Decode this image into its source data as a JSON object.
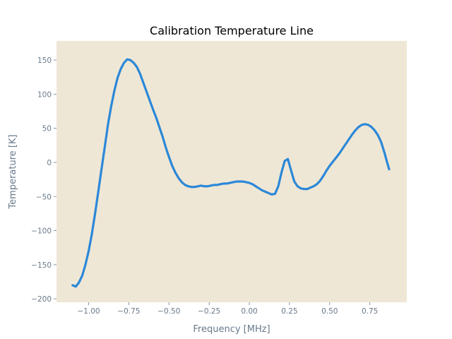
{
  "chart_data": {
    "type": "line",
    "title": "Calibration Temperature Line",
    "xlabel": "Frequency [MHz]",
    "ylabel": "Temperature [K]",
    "xlim": [
      -1.2,
      0.98
    ],
    "ylim": [
      -205,
      178
    ],
    "xticks": [
      -1.0,
      -0.75,
      -0.5,
      -0.25,
      0.0,
      0.25,
      0.5,
      0.75
    ],
    "xtick_labels": [
      "−1.00",
      "−0.75",
      "−0.50",
      "−0.25",
      "0.00",
      "0.25",
      "0.50",
      "0.75"
    ],
    "yticks": [
      -200,
      -150,
      -100,
      -50,
      0,
      50,
      100,
      150
    ],
    "ytick_labels": [
      "−200",
      "−150",
      "−100",
      "−50",
      "0",
      "50",
      "100",
      "150"
    ],
    "grid": false,
    "legend": "none",
    "colors": {
      "plot_background": "#efe7d5",
      "line": "#2b88d8"
    },
    "series": [
      {
        "x": [
          -1.1,
          -1.08,
          -1.06,
          -1.04,
          -1.02,
          -1.0,
          -0.98,
          -0.96,
          -0.94,
          -0.92,
          -0.9,
          -0.88,
          -0.86,
          -0.84,
          -0.82,
          -0.8,
          -0.78,
          -0.76,
          -0.74,
          -0.72,
          -0.7,
          -0.68,
          -0.66,
          -0.64,
          -0.62,
          -0.6,
          -0.58,
          -0.56,
          -0.54,
          -0.52,
          -0.5,
          -0.48,
          -0.46,
          -0.44,
          -0.42,
          -0.4,
          -0.38,
          -0.36,
          -0.34,
          -0.32,
          -0.3,
          -0.28,
          -0.26,
          -0.24,
          -0.22,
          -0.2,
          -0.18,
          -0.16,
          -0.14,
          -0.12,
          -0.1,
          -0.08,
          -0.06,
          -0.04,
          -0.02,
          0.0,
          0.02,
          0.04,
          0.06,
          0.08,
          0.1,
          0.12,
          0.14,
          0.16,
          0.18,
          0.2,
          0.22,
          0.24,
          0.26,
          0.28,
          0.3,
          0.32,
          0.34,
          0.36,
          0.38,
          0.4,
          0.42,
          0.44,
          0.46,
          0.48,
          0.5,
          0.52,
          0.54,
          0.56,
          0.58,
          0.6,
          0.62,
          0.64,
          0.66,
          0.68,
          0.7,
          0.72,
          0.74,
          0.76,
          0.78,
          0.8,
          0.82,
          0.84,
          0.86,
          0.87
        ],
        "y": [
          -180,
          -182,
          -176,
          -166,
          -150,
          -130,
          -105,
          -75,
          -43,
          -10,
          22,
          55,
          82,
          105,
          124,
          137,
          146,
          151,
          150,
          146,
          140,
          130,
          117,
          104,
          91,
          78,
          66,
          52,
          38,
          22,
          8,
          -5,
          -15,
          -23,
          -29,
          -33,
          -35,
          -36,
          -36,
          -35,
          -34,
          -35,
          -35,
          -34,
          -33,
          -33,
          -32,
          -31,
          -31,
          -30,
          -29,
          -28,
          -28,
          -28,
          -29,
          -30,
          -32,
          -35,
          -38,
          -41,
          -43,
          -45,
          -47,
          -46,
          -35,
          -15,
          2,
          5,
          -12,
          -28,
          -35,
          -38,
          -39,
          -39,
          -37,
          -35,
          -32,
          -27,
          -20,
          -12,
          -5,
          1,
          7,
          13,
          20,
          27,
          34,
          41,
          47,
          52,
          55,
          56,
          55,
          52,
          47,
          40,
          30,
          15,
          -2,
          -10
        ]
      }
    ]
  }
}
